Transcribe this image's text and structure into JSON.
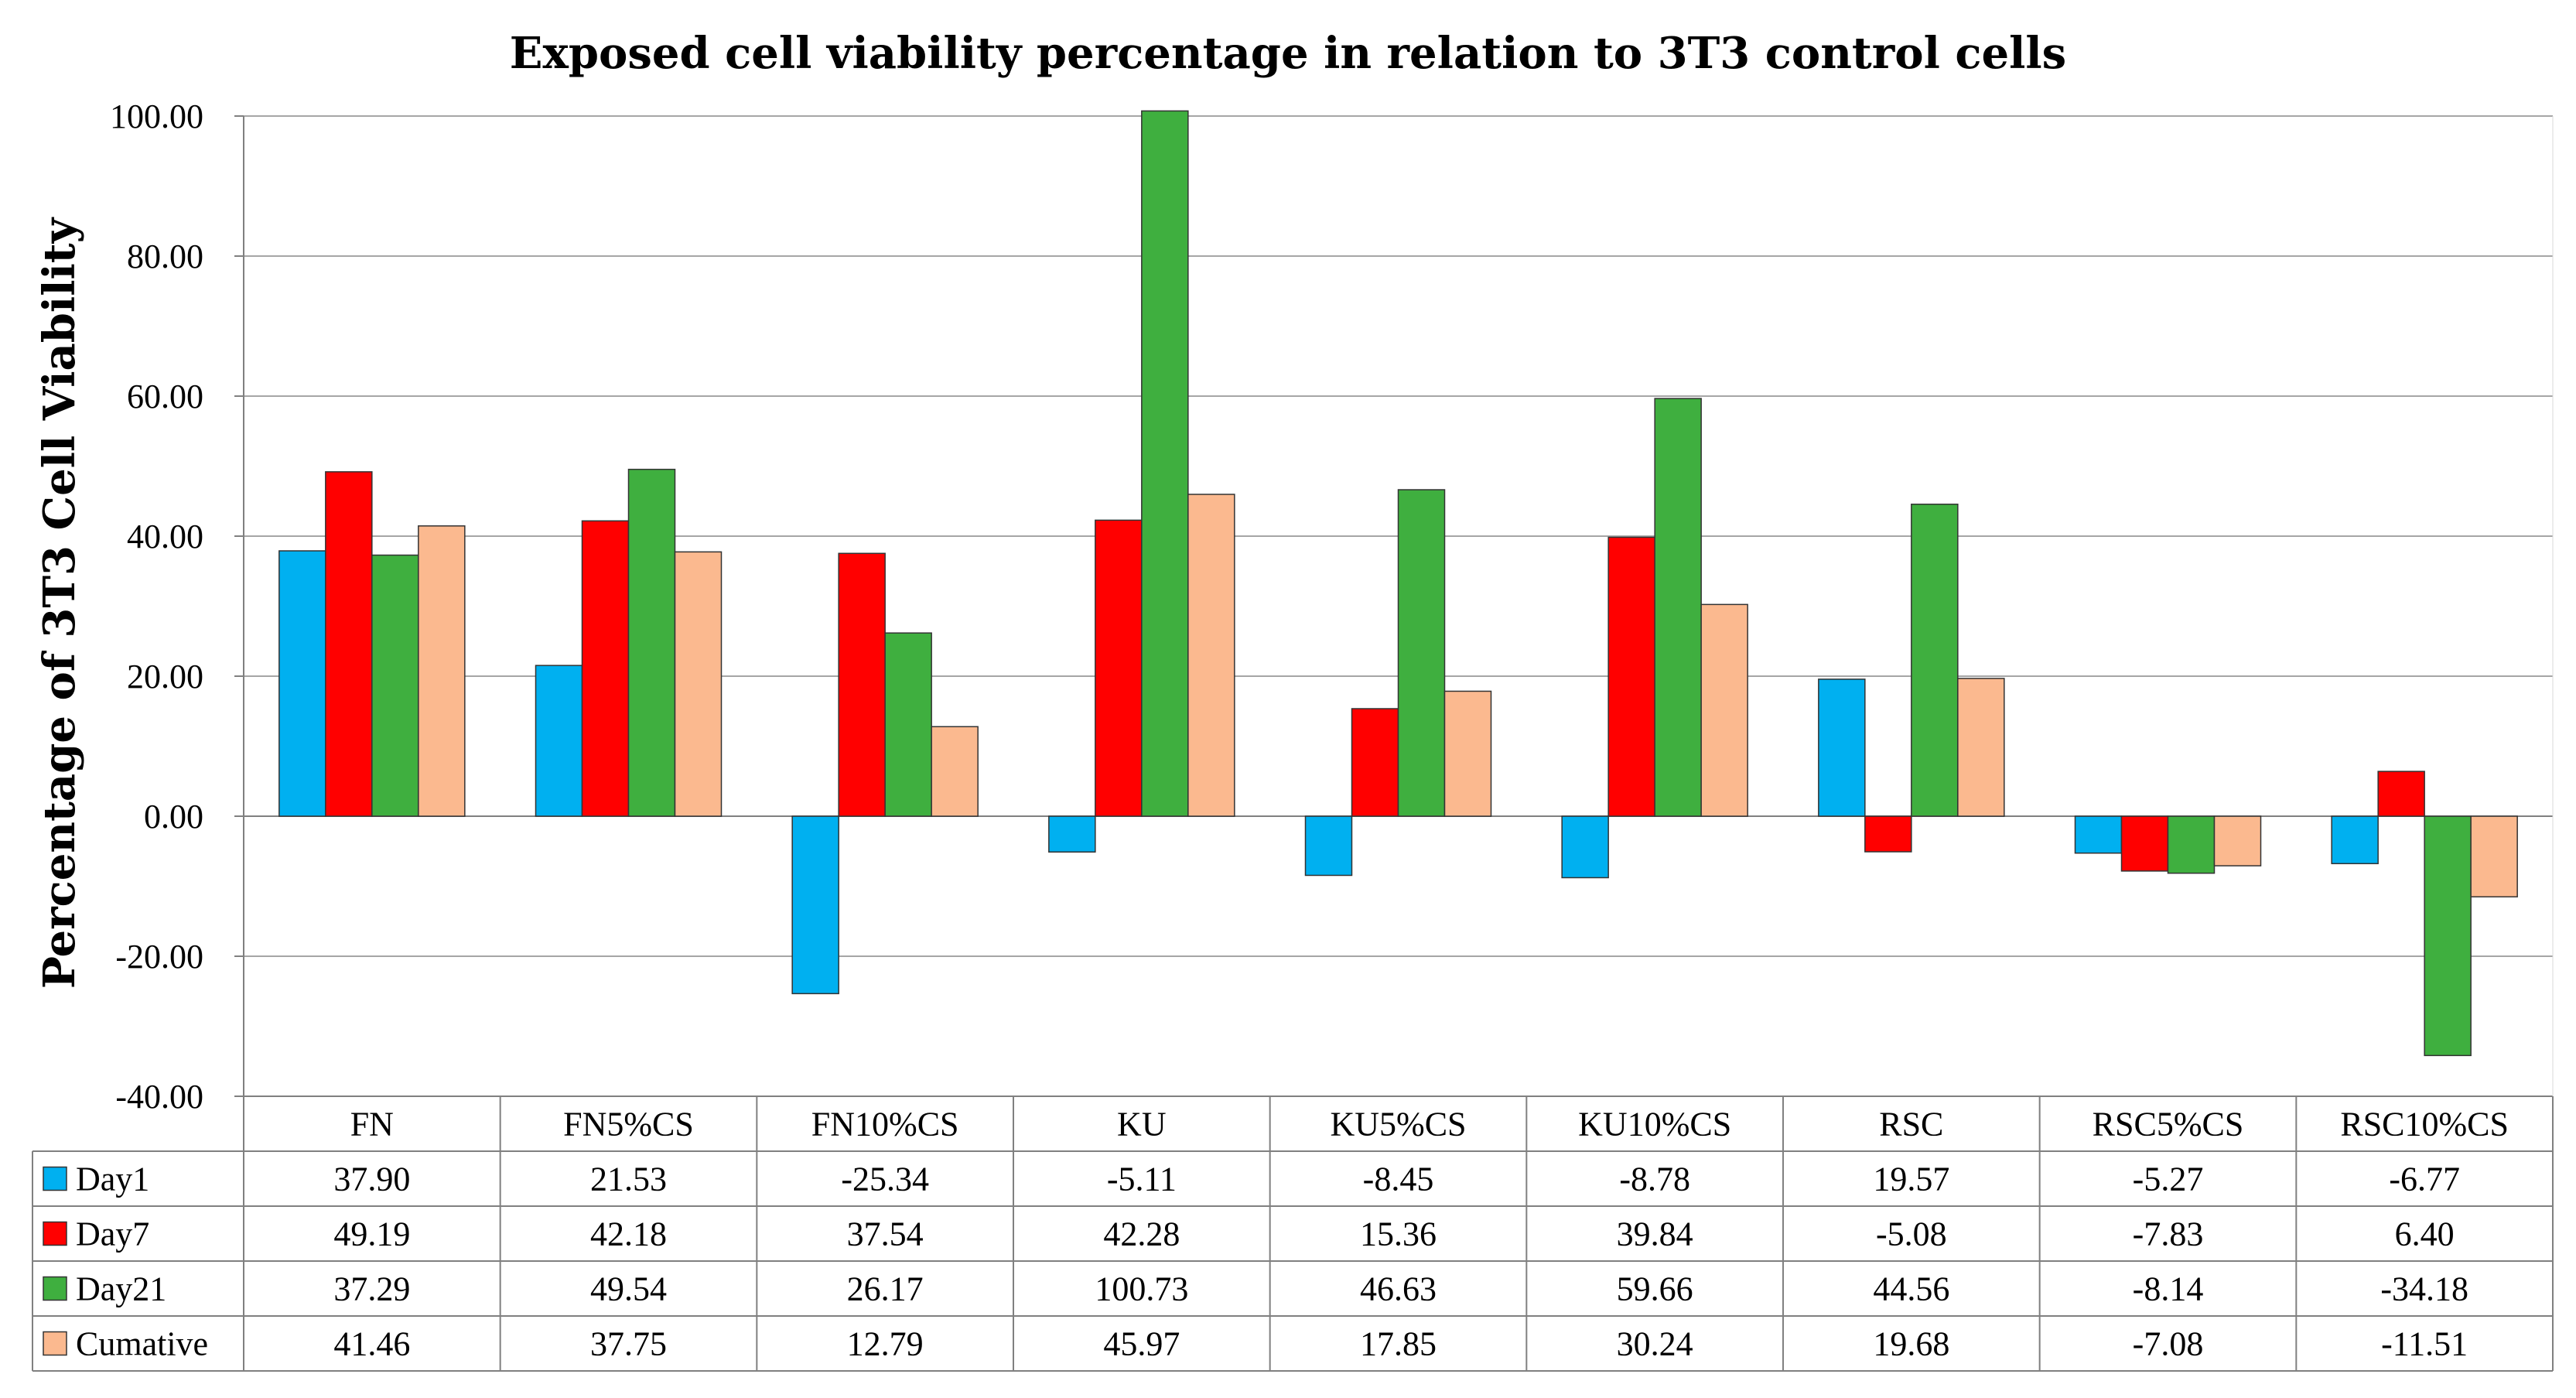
{
  "chart_data": {
    "type": "bar",
    "title": "Exposed cell viability percentage in relation to 3T3 control cells",
    "xlabel": "",
    "ylabel": "Percentage of  3T3 Cell Viability",
    "ylim": [
      -40,
      100
    ],
    "yticks": [
      -40,
      -20,
      0,
      20,
      40,
      60,
      80,
      100
    ],
    "ytick_labels": [
      "-40.00",
      "-20.00",
      "0.00",
      "20.00",
      "40.00",
      "60.00",
      "80.00",
      "100.00"
    ],
    "grid": true,
    "legend": "data-table-left",
    "categories": [
      "FN",
      "FN5%CS",
      "FN10%CS",
      "KU",
      "KU5%CS",
      "KU10%CS",
      "RSC",
      "RSC5%CS",
      "RSC10%CS"
    ],
    "series": [
      {
        "name": "Day1",
        "color": "#00B0F0",
        "values": [
          37.9,
          21.53,
          -25.34,
          -5.11,
          -8.45,
          -8.78,
          19.57,
          -5.27,
          -6.77
        ],
        "labels": [
          "37.90",
          "21.53",
          "-25.34",
          "-5.11",
          "-8.45",
          "-8.78",
          "19.57",
          "-5.27",
          "-6.77"
        ]
      },
      {
        "name": "Day7",
        "color": "#FF0000",
        "values": [
          49.19,
          42.18,
          37.54,
          42.28,
          15.36,
          39.84,
          -5.08,
          -7.83,
          6.4
        ],
        "labels": [
          "49.19",
          "42.18",
          "37.54",
          "42.28",
          "15.36",
          "39.84",
          "-5.08",
          "-7.83",
          "6.40"
        ]
      },
      {
        "name": "Day21",
        "color": "#3FAF3F",
        "values": [
          37.29,
          49.54,
          26.17,
          100.73,
          46.63,
          59.66,
          44.56,
          -8.14,
          -34.18
        ],
        "labels": [
          "37.29",
          "49.54",
          "26.17",
          "100.73",
          "46.63",
          "59.66",
          "44.56",
          "-8.14",
          "-34.18"
        ]
      },
      {
        "name": "Cumative",
        "color": "#FBB98F",
        "values": [
          41.46,
          37.75,
          12.79,
          45.97,
          17.85,
          30.24,
          19.68,
          -7.08,
          -11.51
        ],
        "labels": [
          "41.46",
          "37.75",
          "12.79",
          "45.97",
          "17.85",
          "30.24",
          "19.68",
          "-7.08",
          "-11.51"
        ]
      }
    ]
  }
}
